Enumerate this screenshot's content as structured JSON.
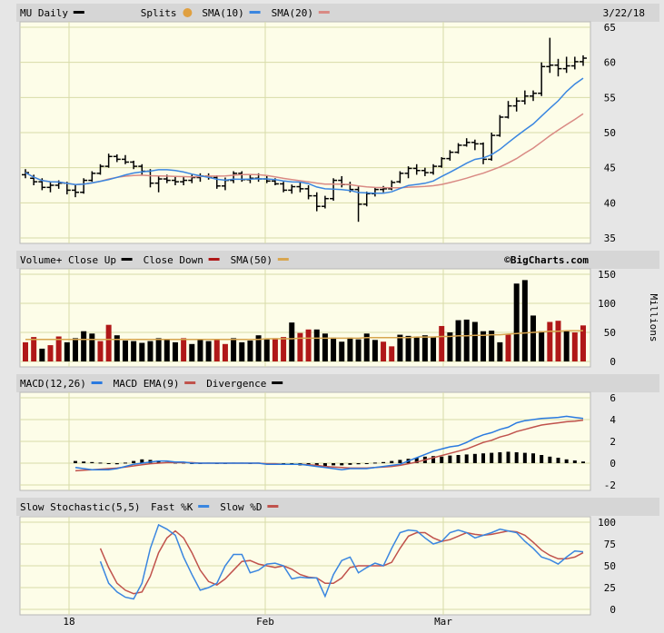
{
  "date": "3/22/18",
  "watermark": "©BigCharts.com",
  "colors": {
    "panel_bg": "#fdfde8",
    "frame_bg": "#e6e6e6",
    "header_bg": "#d6d6d6",
    "grid": "#d8dca8",
    "sma10": "#3a86e0",
    "sma20": "#d98a84",
    "up": "#000000",
    "down": "#b01818",
    "sma50": "#d8a650",
    "macd": "#2a7ae0",
    "signal": "#c0524c",
    "fastk": "#3a86e0",
    "slowd": "#c0524c"
  },
  "legends": {
    "price": [
      {
        "label": "MU Daily",
        "swatch": "#000000",
        "kind": "line"
      },
      {
        "label": "Splits",
        "swatch": "#e0a040",
        "kind": "circle"
      },
      {
        "label": "SMA(10)",
        "swatch": "#3a86e0",
        "kind": "line"
      },
      {
        "label": "SMA(20)",
        "swatch": "#d98a84",
        "kind": "line"
      }
    ],
    "volume": [
      {
        "label": "Volume+ Close Up",
        "swatch": "#000000",
        "kind": "line"
      },
      {
        "label": "Close Down",
        "swatch": "#b01818",
        "kind": "line"
      },
      {
        "label": "SMA(50)",
        "swatch": "#d8a650",
        "kind": "line"
      }
    ],
    "macd": [
      {
        "label": "MACD(12,26)",
        "swatch": "#2a7ae0",
        "kind": "line"
      },
      {
        "label": "MACD EMA(9)",
        "swatch": "#c0524c",
        "kind": "line"
      },
      {
        "label": "Divergence",
        "swatch": "#000000",
        "kind": "line"
      }
    ],
    "stoch": [
      {
        "label": "Slow Stochastic(5,5)",
        "swatch": null,
        "kind": "none"
      },
      {
        "label": "Fast %K",
        "swatch": "#3a86e0",
        "kind": "line"
      },
      {
        "label": "Slow %D",
        "swatch": "#c0524c",
        "kind": "line"
      }
    ]
  },
  "x_labels": [
    {
      "label": "18",
      "index": 5
    },
    {
      "label": "Feb",
      "index": 27
    },
    {
      "label": "Mar",
      "index": 46
    }
  ],
  "chart_data": [
    {
      "type": "ohlc",
      "name": "price",
      "ylim": [
        35,
        65
      ],
      "yticks": [
        35,
        40,
        45,
        50,
        55,
        60,
        65
      ],
      "ohlc": [
        [
          44.0,
          44.8,
          43.5,
          44.3
        ],
        [
          43.5,
          44.0,
          42.5,
          43.0
        ],
        [
          43.0,
          43.5,
          41.8,
          42.2
        ],
        [
          42.2,
          43.0,
          41.5,
          42.5
        ],
        [
          42.5,
          43.2,
          42.0,
          42.8
        ],
        [
          42.8,
          43.0,
          41.2,
          41.8
        ],
        [
          41.8,
          42.5,
          40.8,
          41.5
        ],
        [
          41.5,
          43.5,
          41.3,
          43.2
        ],
        [
          43.2,
          44.5,
          43.0,
          44.2
        ],
        [
          44.2,
          45.5,
          44.0,
          45.2
        ],
        [
          45.2,
          47.0,
          45.0,
          46.6
        ],
        [
          46.6,
          46.9,
          45.8,
          46.2
        ],
        [
          46.2,
          46.8,
          45.5,
          45.8
        ],
        [
          45.8,
          46.0,
          44.8,
          45.2
        ],
        [
          45.2,
          45.5,
          44.0,
          44.5
        ],
        [
          44.5,
          44.8,
          42.2,
          42.8
        ],
        [
          42.8,
          43.8,
          41.5,
          43.4
        ],
        [
          43.4,
          44.0,
          42.8,
          43.2
        ],
        [
          43.2,
          43.8,
          42.5,
          43.0
        ],
        [
          43.0,
          43.8,
          42.5,
          43.2
        ],
        [
          43.2,
          44.0,
          42.8,
          43.6
        ],
        [
          43.6,
          44.2,
          43.0,
          43.8
        ],
        [
          43.8,
          44.2,
          43.3,
          43.6
        ],
        [
          43.6,
          43.9,
          42.0,
          42.4
        ],
        [
          42.4,
          43.6,
          41.8,
          43.2
        ],
        [
          43.2,
          44.5,
          42.8,
          44.2
        ],
        [
          44.2,
          44.5,
          43.0,
          43.3
        ],
        [
          43.3,
          44.0,
          42.8,
          43.5
        ],
        [
          43.5,
          44.2,
          43.0,
          43.4
        ],
        [
          43.4,
          43.8,
          42.8,
          43.1
        ],
        [
          43.1,
          43.5,
          42.5,
          42.7
        ],
        [
          42.7,
          43.0,
          41.5,
          41.8
        ],
        [
          41.8,
          42.6,
          41.3,
          42.3
        ],
        [
          42.3,
          43.0,
          41.5,
          42.0
        ],
        [
          42.0,
          42.5,
          40.5,
          41.0
        ],
        [
          41.0,
          41.5,
          38.8,
          39.5
        ],
        [
          39.5,
          41.0,
          39.2,
          40.6
        ],
        [
          40.6,
          43.5,
          40.3,
          43.2
        ],
        [
          43.2,
          43.8,
          42.2,
          42.6
        ],
        [
          42.6,
          43.0,
          41.5,
          41.9
        ],
        [
          41.9,
          42.3,
          37.3,
          39.8
        ],
        [
          39.8,
          41.6,
          39.5,
          41.3
        ],
        [
          41.3,
          42.2,
          40.9,
          41.9
        ],
        [
          41.9,
          42.4,
          41.5,
          42.0
        ],
        [
          42.0,
          43.2,
          41.8,
          42.9
        ]
      ]
    },
    {
      "type": "bar",
      "name": "volume",
      "unit": "Millions",
      "ylim": [
        0,
        150
      ],
      "yticks": [
        0,
        50,
        100,
        150
      ],
      "values": [
        33,
        42,
        22,
        28,
        43,
        33,
        40,
        52,
        48,
        35,
        63,
        45,
        36,
        35,
        32,
        35,
        40,
        38,
        33,
        40,
        30,
        38,
        35,
        38,
        30,
        40,
        33,
        36,
        45,
        38,
        40,
        42,
        67,
        49,
        55,
        55,
        48,
        41,
        34,
        41,
        38,
        48,
        37,
        34,
        26,
        46,
        44,
        43,
        45,
        43,
        61,
        50,
        71,
        72,
        68,
        52,
        53,
        33,
        46,
        134,
        140,
        79,
        52,
        68,
        70,
        52,
        50,
        62
      ],
      "down": [
        true,
        true,
        false,
        true,
        true,
        false,
        false,
        false,
        false,
        true,
        true,
        false,
        false,
        false,
        false,
        false,
        false,
        false,
        false,
        true,
        false,
        false,
        false,
        true,
        true,
        false,
        false,
        false,
        false,
        false,
        true,
        true,
        false,
        true,
        true,
        false,
        false,
        false,
        false,
        false,
        false,
        false,
        false,
        true,
        true,
        false,
        false,
        false,
        false,
        false,
        true,
        false,
        false,
        false,
        false,
        false,
        false,
        false,
        true,
        false,
        false,
        false,
        false,
        true,
        true,
        false,
        true,
        true
      ],
      "sma50": [
        38,
        38,
        38,
        38,
        38,
        38,
        38,
        38,
        38,
        38,
        38,
        38,
        38,
        38,
        38,
        38,
        38,
        38,
        38,
        38,
        38,
        38,
        38,
        38,
        38,
        38,
        38,
        38,
        38,
        39,
        39,
        39,
        39,
        40,
        40,
        40,
        40,
        40,
        40,
        40,
        40,
        41,
        41,
        41,
        41,
        41,
        41,
        42,
        42,
        42,
        43,
        43,
        44,
        44,
        45,
        45,
        46,
        46,
        47,
        48,
        49,
        50,
        51,
        52,
        52,
        53,
        53,
        53
      ]
    },
    {
      "type": "line",
      "name": "macd",
      "ylim": [
        -2,
        6
      ],
      "yticks": [
        -2,
        0,
        2,
        4,
        6
      ],
      "macd": [
        -0.4,
        -0.5,
        -0.6,
        -0.6,
        -0.6,
        -0.5,
        -0.3,
        -0.1,
        0.0,
        0.1,
        0.2,
        0.2,
        0.1,
        0.1,
        0.0,
        0.0,
        0.0,
        0.0,
        0.0,
        0.0,
        0.0,
        0.0,
        0.0,
        -0.1,
        -0.1,
        -0.1,
        -0.1,
        -0.1,
        -0.2,
        -0.3,
        -0.4,
        -0.5,
        -0.6,
        -0.5,
        -0.5,
        -0.5,
        -0.4,
        -0.3,
        -0.2,
        -0.1,
        0.2,
        0.5,
        0.8,
        1.1,
        1.3,
        1.5,
        1.6,
        1.9,
        2.3,
        2.6,
        2.8,
        3.1,
        3.3,
        3.7,
        3.9,
        4.0,
        4.1,
        4.15,
        4.2,
        4.3,
        4.2,
        4.1
      ],
      "signal": [
        -0.7,
        -0.65,
        -0.6,
        -0.55,
        -0.5,
        -0.45,
        -0.35,
        -0.25,
        -0.15,
        -0.05,
        0.0,
        0.05,
        0.05,
        0.05,
        0.05,
        0.0,
        0.0,
        0.0,
        0.0,
        0.0,
        0.0,
        0.0,
        0.0,
        -0.05,
        -0.05,
        -0.1,
        -0.1,
        -0.1,
        -0.15,
        -0.2,
        -0.3,
        -0.35,
        -0.4,
        -0.45,
        -0.45,
        -0.45,
        -0.4,
        -0.35,
        -0.3,
        -0.2,
        -0.05,
        0.1,
        0.3,
        0.5,
        0.7,
        0.9,
        1.1,
        1.3,
        1.6,
        1.9,
        2.1,
        2.4,
        2.6,
        2.9,
        3.1,
        3.3,
        3.5,
        3.6,
        3.7,
        3.8,
        3.85,
        3.95
      ],
      "divergence": [
        0.2,
        0.15,
        0.1,
        0.05,
        -0.05,
        -0.1,
        0.05,
        0.2,
        0.35,
        0.3,
        0.25,
        0.1,
        0.05,
        0.05,
        -0.05,
        0.0,
        0.05,
        0.0,
        0.0,
        0.05,
        0.05,
        0.0,
        0.05,
        0.0,
        -0.05,
        -0.1,
        -0.15,
        -0.2,
        -0.25,
        -0.3,
        -0.25,
        -0.2,
        -0.2,
        -0.15,
        -0.1,
        -0.05,
        0.05,
        0.1,
        0.2,
        0.3,
        0.4,
        0.5,
        0.6,
        0.65,
        0.6,
        0.7,
        0.75,
        0.8,
        0.85,
        0.9,
        0.95,
        1.0,
        1.05,
        1.0,
        0.95,
        0.9,
        0.75,
        0.6,
        0.5,
        0.35,
        0.25,
        0.15
      ]
    },
    {
      "type": "line",
      "name": "stochastic",
      "ylim": [
        0,
        100
      ],
      "yticks": [
        0,
        25,
        50,
        75,
        100
      ],
      "fastk": [
        55,
        30,
        20,
        14,
        12,
        30,
        70,
        97,
        92,
        85,
        60,
        40,
        22,
        25,
        30,
        50,
        63,
        63,
        42,
        45,
        52,
        53,
        50,
        35,
        37,
        36,
        36,
        15,
        40,
        56,
        60,
        42,
        48,
        53,
        50,
        70,
        88,
        91,
        90,
        82,
        75,
        78,
        88,
        91,
        88,
        82,
        85,
        88,
        92,
        90,
        88,
        78,
        70,
        60,
        57,
        52,
        60,
        67,
        66
      ],
      "slowd": [
        70,
        48,
        30,
        22,
        18,
        20,
        38,
        65,
        82,
        90,
        82,
        65,
        45,
        32,
        28,
        35,
        45,
        55,
        56,
        52,
        50,
        48,
        50,
        46,
        40,
        37,
        36,
        30,
        30,
        36,
        48,
        50,
        50,
        50,
        50,
        54,
        70,
        84,
        88,
        88,
        82,
        78,
        80,
        84,
        88,
        86,
        85,
        86,
        88,
        90,
        89,
        85,
        77,
        68,
        62,
        58,
        58,
        60,
        65
      ]
    }
  ]
}
